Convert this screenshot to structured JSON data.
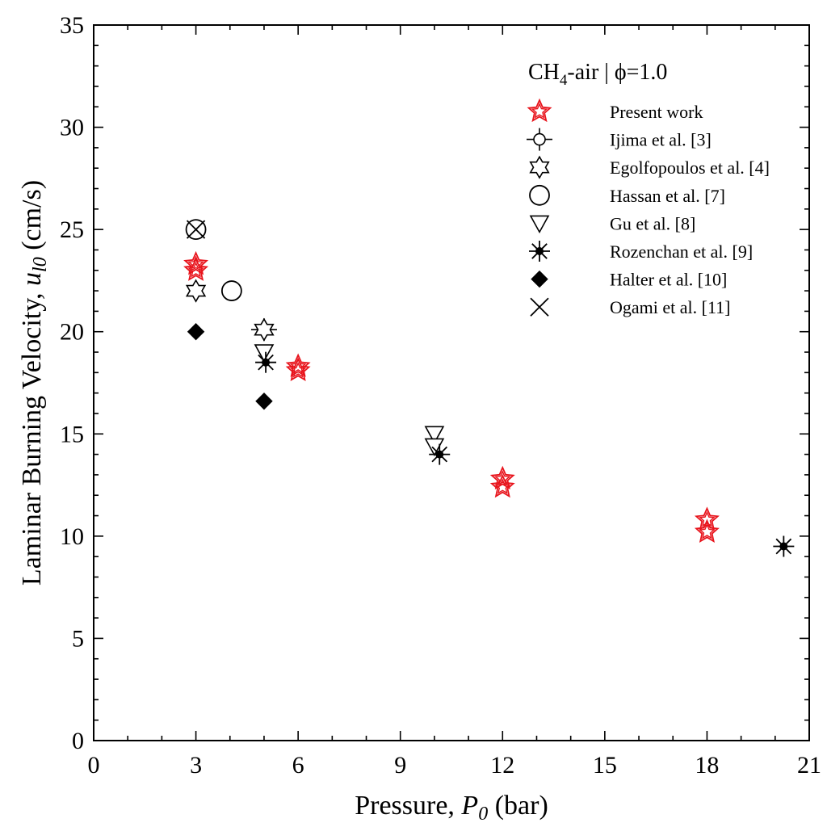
{
  "chart_data": {
    "type": "scatter",
    "title": "",
    "xlabel": "Pressure, P0 (bar)",
    "xlabel_parts": {
      "main": "Pressure, ",
      "var": "P",
      "sub": "0",
      "unit": " (bar)"
    },
    "ylabel": "Laminar Burning Velocity, ul0 (cm/s)",
    "ylabel_parts": {
      "main": "Laminar Burning Velocity, ",
      "var": "u",
      "sub": "l0",
      "unit": " (cm/s)"
    },
    "xlim": [
      0,
      21
    ],
    "ylim": [
      0,
      35
    ],
    "xticks": [
      0,
      3,
      6,
      9,
      12,
      15,
      18,
      21
    ],
    "yticks": [
      0,
      5,
      10,
      15,
      20,
      25,
      30,
      35
    ],
    "grid": false,
    "legend": {
      "placement": "top-right",
      "title": "CH4-air | ϕ=1.0",
      "title_parts": {
        "pre": "CH",
        "sub": "4",
        "post": "-air | ϕ=1.0"
      }
    },
    "series": [
      {
        "name": "Present work",
        "marker": "star-double",
        "color": "#e8141c",
        "points": [
          [
            3,
            23.3
          ],
          [
            3,
            23.0
          ],
          [
            6,
            18.3
          ],
          [
            6,
            18.1
          ],
          [
            12,
            12.8
          ],
          [
            12,
            12.4
          ],
          [
            18,
            10.8
          ],
          [
            18,
            10.2
          ]
        ]
      },
      {
        "name": "Ijima et al. [3]",
        "marker": "circle-errorbar",
        "color": "#000000",
        "points": [
          [
            5,
            20.1
          ]
        ]
      },
      {
        "name": "Egolfopoulos et al. [4]",
        "marker": "hexagram",
        "color": "#000000",
        "points": [
          [
            3,
            22.0
          ],
          [
            5,
            20.1
          ]
        ]
      },
      {
        "name": "Hassan et al. [7]",
        "marker": "circle-large",
        "color": "#000000",
        "points": [
          [
            3,
            25.0
          ],
          [
            4.05,
            22.0
          ]
        ]
      },
      {
        "name": "Gu et al. [8]",
        "marker": "triangle-down",
        "color": "#000000",
        "points": [
          [
            5,
            19.0
          ],
          [
            10,
            15.0
          ],
          [
            10,
            14.4
          ]
        ]
      },
      {
        "name": "Rozenchan et al. [9]",
        "marker": "asterisk",
        "color": "#000000",
        "points": [
          [
            5.05,
            18.5
          ],
          [
            10.15,
            14.0
          ],
          [
            20.25,
            9.5
          ]
        ]
      },
      {
        "name": "Halter et al. [10]",
        "marker": "diamond-filled",
        "color": "#000000",
        "points": [
          [
            3,
            20.0
          ],
          [
            5,
            16.6
          ]
        ]
      },
      {
        "name": "Ogami et al. [11]",
        "marker": "x-cross",
        "color": "#000000",
        "points": [
          [
            3,
            25.0
          ]
        ]
      }
    ]
  }
}
